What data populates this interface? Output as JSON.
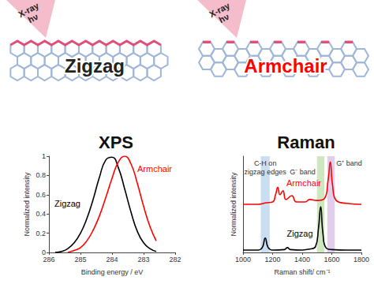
{
  "illustrations": [
    {
      "beam_label": "X-ray\nhν",
      "edge": "Zigzag",
      "color": "#222222"
    },
    {
      "beam_label": "X-ray\nhν",
      "edge": "Armchair",
      "color": "#ff0000"
    }
  ],
  "chart_data": [
    {
      "type": "line",
      "title": "XPS",
      "x_label": "Binding energy / eV",
      "y_label": "Normalized intensity",
      "xlim": [
        286,
        282
      ],
      "xticks": [
        286,
        285,
        284,
        283,
        282
      ],
      "ylim": [
        0,
        1
      ],
      "yticks": [
        0,
        0.2,
        0.4,
        0.6,
        0.8,
        1
      ],
      "grid": false,
      "series": [
        {
          "name": "Zigzag",
          "color": "#000000",
          "x": [
            285.8,
            285.6,
            285.4,
            285.2,
            285.0,
            284.8,
            284.6,
            284.4,
            284.2,
            284.0,
            283.8,
            283.6,
            283.4,
            283.2,
            283.0,
            282.8,
            282.6
          ],
          "values": [
            0.0,
            0.01,
            0.04,
            0.1,
            0.2,
            0.35,
            0.55,
            0.78,
            0.96,
            0.99,
            0.88,
            0.66,
            0.42,
            0.22,
            0.1,
            0.04,
            0.01
          ]
        },
        {
          "name": "Armchair",
          "color": "#ff0000",
          "x": [
            285.4,
            285.2,
            285.0,
            284.8,
            284.6,
            284.4,
            284.2,
            284.0,
            283.8,
            283.6,
            283.4,
            283.2,
            283.0,
            282.8,
            282.6
          ],
          "values": [
            0.0,
            0.02,
            0.05,
            0.12,
            0.23,
            0.38,
            0.57,
            0.77,
            0.94,
            1.0,
            0.92,
            0.72,
            0.48,
            0.27,
            0.12
          ]
        }
      ]
    },
    {
      "type": "line",
      "title": "Raman",
      "x_label": "Raman shift/ cm⁻¹",
      "y_label": "Normalized intensity",
      "xlim": [
        1000,
        1800
      ],
      "xticks": [
        1000,
        1200,
        1400,
        1600,
        1800
      ],
      "ylim": [
        0,
        2
      ],
      "tick_labels": "x",
      "grid": false,
      "bands": [
        {
          "label": "C-H on\nzigzag edges",
          "range": [
            1120,
            1180
          ],
          "color": "#9dc3e6"
        },
        {
          "label": "G⁻ band",
          "range": [
            1500,
            1550
          ],
          "color": "#a9d18e"
        },
        {
          "label": "G⁺ band",
          "range": [
            1570,
            1620
          ],
          "color": "#c9a6dc"
        }
      ],
      "series": [
        {
          "name": "Armchair",
          "color": "#ff0000",
          "x": [
            1000,
            1100,
            1150,
            1200,
            1220,
            1235,
            1250,
            1270,
            1290,
            1330,
            1360,
            1420,
            1450,
            1500,
            1550,
            1575,
            1590,
            1605,
            1630,
            1700,
            1800
          ],
          "values": [
            1.0,
            1.0,
            1.03,
            1.05,
            1.2,
            1.35,
            1.2,
            1.28,
            1.1,
            1.18,
            1.05,
            1.05,
            1.1,
            1.08,
            1.12,
            1.5,
            1.88,
            1.4,
            1.08,
            1.02,
            1.0
          ]
        },
        {
          "name": "Zigzag",
          "color": "#000000",
          "x": [
            1000,
            1100,
            1130,
            1150,
            1170,
            1200,
            1280,
            1300,
            1320,
            1400,
            1450,
            1490,
            1510,
            1525,
            1540,
            1560,
            1600,
            1700,
            1800
          ],
          "values": [
            0.05,
            0.05,
            0.1,
            0.3,
            0.1,
            0.05,
            0.06,
            0.1,
            0.06,
            0.05,
            0.07,
            0.12,
            0.5,
            0.95,
            0.4,
            0.1,
            0.06,
            0.05,
            0.05
          ]
        }
      ]
    }
  ]
}
